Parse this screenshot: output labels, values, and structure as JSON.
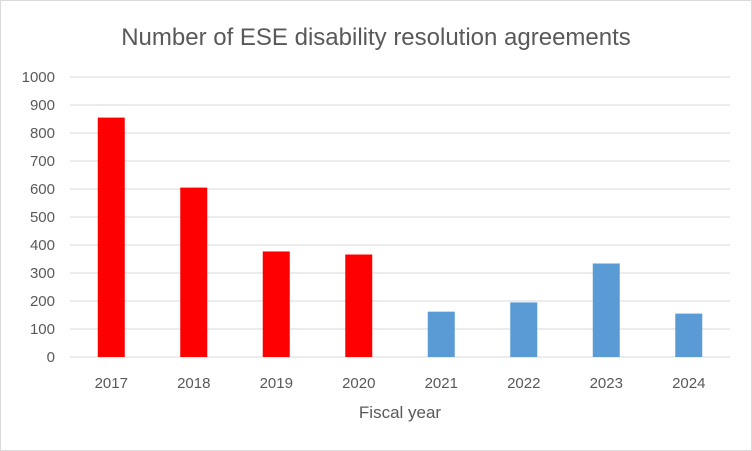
{
  "chart_data": {
    "type": "bar",
    "title": "Number of ESE disability resolution agreements",
    "xlabel": "Fiscal year",
    "ylabel": "",
    "categories": [
      "2017",
      "2018",
      "2019",
      "2020",
      "2021",
      "2022",
      "2023",
      "2024"
    ],
    "values": [
      855,
      605,
      377,
      366,
      162,
      195,
      334,
      155
    ],
    "bar_colors": [
      "#ff0000",
      "#ff0000",
      "#ff0000",
      "#ff0000",
      "#5b9bd5",
      "#5b9bd5",
      "#5b9bd5",
      "#5b9bd5"
    ],
    "ylim": [
      0,
      1000
    ],
    "yticks": [
      "0",
      "100",
      "200",
      "300",
      "400",
      "500",
      "600",
      "700",
      "800",
      "900",
      "1000"
    ],
    "grid": true,
    "legend": "none"
  }
}
